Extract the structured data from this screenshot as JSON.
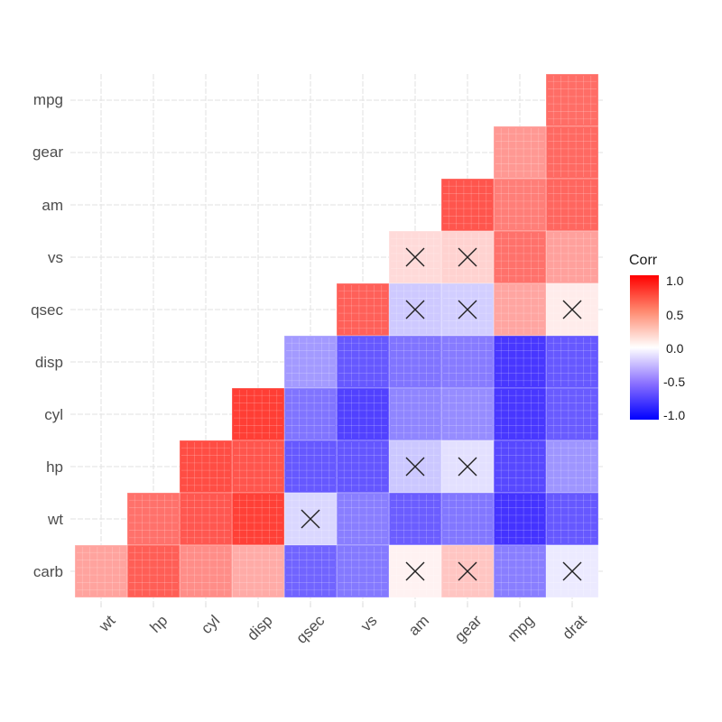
{
  "chart_data": {
    "type": "heatmap",
    "title": "",
    "subtitle": "",
    "xlabel": "",
    "ylabel": "",
    "x_categories": [
      "wt",
      "hp",
      "cyl",
      "disp",
      "qsec",
      "vs",
      "am",
      "gear",
      "mpg",
      "drat"
    ],
    "y_categories_top_to_bottom": [
      "mpg",
      "gear",
      "am",
      "vs",
      "qsec",
      "disp",
      "cyl",
      "hp",
      "wt",
      "carb"
    ],
    "grid": true,
    "legend": {
      "title": "Corr",
      "position": "right",
      "ticks": [
        "1.0",
        "0.5",
        "0.0",
        "-0.5",
        "-1.0"
      ],
      "range": [
        -1,
        1
      ],
      "low_color": "#0000FF",
      "mid_color": "#FFFFFF",
      "high_color": "#FF0000"
    },
    "insignificant_marker": "X",
    "cells": [
      {
        "x": "drat",
        "y": "mpg",
        "value": 0.68,
        "insignificant": false
      },
      {
        "x": "drat",
        "y": "gear",
        "value": 0.7,
        "insignificant": false
      },
      {
        "x": "drat",
        "y": "am",
        "value": 0.71,
        "insignificant": false
      },
      {
        "x": "drat",
        "y": "vs",
        "value": 0.44,
        "insignificant": false
      },
      {
        "x": "drat",
        "y": "qsec",
        "value": 0.09,
        "insignificant": true
      },
      {
        "x": "drat",
        "y": "disp",
        "value": -0.71,
        "insignificant": false
      },
      {
        "x": "drat",
        "y": "cyl",
        "value": -0.7,
        "insignificant": false
      },
      {
        "x": "drat",
        "y": "hp",
        "value": -0.45,
        "insignificant": false
      },
      {
        "x": "drat",
        "y": "wt",
        "value": -0.71,
        "insignificant": false
      },
      {
        "x": "drat",
        "y": "carb",
        "value": -0.09,
        "insignificant": true
      },
      {
        "x": "mpg",
        "y": "gear",
        "value": 0.48,
        "insignificant": false
      },
      {
        "x": "mpg",
        "y": "am",
        "value": 0.6,
        "insignificant": false
      },
      {
        "x": "mpg",
        "y": "vs",
        "value": 0.66,
        "insignificant": false
      },
      {
        "x": "mpg",
        "y": "qsec",
        "value": 0.42,
        "insignificant": false
      },
      {
        "x": "mpg",
        "y": "disp",
        "value": -0.85,
        "insignificant": false
      },
      {
        "x": "mpg",
        "y": "cyl",
        "value": -0.85,
        "insignificant": false
      },
      {
        "x": "mpg",
        "y": "hp",
        "value": -0.78,
        "insignificant": false
      },
      {
        "x": "mpg",
        "y": "wt",
        "value": -0.87,
        "insignificant": false
      },
      {
        "x": "mpg",
        "y": "carb",
        "value": -0.55,
        "insignificant": false
      },
      {
        "x": "gear",
        "y": "am",
        "value": 0.79,
        "insignificant": false
      },
      {
        "x": "gear",
        "y": "vs",
        "value": 0.21,
        "insignificant": true
      },
      {
        "x": "gear",
        "y": "qsec",
        "value": -0.21,
        "insignificant": true
      },
      {
        "x": "gear",
        "y": "disp",
        "value": -0.56,
        "insignificant": false
      },
      {
        "x": "gear",
        "y": "cyl",
        "value": -0.49,
        "insignificant": false
      },
      {
        "x": "gear",
        "y": "hp",
        "value": -0.13,
        "insignificant": true
      },
      {
        "x": "gear",
        "y": "wt",
        "value": -0.58,
        "insignificant": false
      },
      {
        "x": "gear",
        "y": "carb",
        "value": 0.27,
        "insignificant": true
      },
      {
        "x": "am",
        "y": "vs",
        "value": 0.17,
        "insignificant": true
      },
      {
        "x": "am",
        "y": "qsec",
        "value": -0.23,
        "insignificant": true
      },
      {
        "x": "am",
        "y": "disp",
        "value": -0.59,
        "insignificant": false
      },
      {
        "x": "am",
        "y": "cyl",
        "value": -0.52,
        "insignificant": false
      },
      {
        "x": "am",
        "y": "hp",
        "value": -0.24,
        "insignificant": true
      },
      {
        "x": "am",
        "y": "wt",
        "value": -0.69,
        "insignificant": false
      },
      {
        "x": "am",
        "y": "carb",
        "value": 0.06,
        "insignificant": true
      },
      {
        "x": "vs",
        "y": "qsec",
        "value": 0.74,
        "insignificant": false
      },
      {
        "x": "vs",
        "y": "disp",
        "value": -0.71,
        "insignificant": false
      },
      {
        "x": "vs",
        "y": "cyl",
        "value": -0.81,
        "insignificant": false
      },
      {
        "x": "vs",
        "y": "hp",
        "value": -0.72,
        "insignificant": false
      },
      {
        "x": "vs",
        "y": "wt",
        "value": -0.55,
        "insignificant": false
      },
      {
        "x": "vs",
        "y": "carb",
        "value": -0.57,
        "insignificant": false
      },
      {
        "x": "qsec",
        "y": "disp",
        "value": -0.43,
        "insignificant": false
      },
      {
        "x": "qsec",
        "y": "cyl",
        "value": -0.59,
        "insignificant": false
      },
      {
        "x": "qsec",
        "y": "hp",
        "value": -0.71,
        "insignificant": false
      },
      {
        "x": "qsec",
        "y": "wt",
        "value": -0.17,
        "insignificant": true
      },
      {
        "x": "qsec",
        "y": "carb",
        "value": -0.66,
        "insignificant": false
      },
      {
        "x": "disp",
        "y": "cyl",
        "value": 0.9,
        "insignificant": false
      },
      {
        "x": "disp",
        "y": "hp",
        "value": 0.79,
        "insignificant": false
      },
      {
        "x": "disp",
        "y": "wt",
        "value": 0.89,
        "insignificant": false
      },
      {
        "x": "disp",
        "y": "carb",
        "value": 0.39,
        "insignificant": false
      },
      {
        "x": "cyl",
        "y": "hp",
        "value": 0.83,
        "insignificant": false
      },
      {
        "x": "cyl",
        "y": "wt",
        "value": 0.78,
        "insignificant": false
      },
      {
        "x": "cyl",
        "y": "carb",
        "value": 0.53,
        "insignificant": false
      },
      {
        "x": "hp",
        "y": "wt",
        "value": 0.66,
        "insignificant": false
      },
      {
        "x": "hp",
        "y": "carb",
        "value": 0.75,
        "insignificant": false
      },
      {
        "x": "wt",
        "y": "carb",
        "value": 0.43,
        "insignificant": false
      }
    ]
  },
  "legend": {
    "title": "Corr",
    "ticks": [
      "1.0",
      "0.5",
      "0.0",
      "-0.5",
      "-1.0"
    ]
  },
  "axes": {
    "x_labels": [
      "wt",
      "hp",
      "cyl",
      "disp",
      "qsec",
      "vs",
      "am",
      "gear",
      "mpg",
      "drat"
    ],
    "y_labels": [
      "mpg",
      "gear",
      "am",
      "vs",
      "qsec",
      "disp",
      "cyl",
      "hp",
      "wt",
      "carb"
    ]
  }
}
